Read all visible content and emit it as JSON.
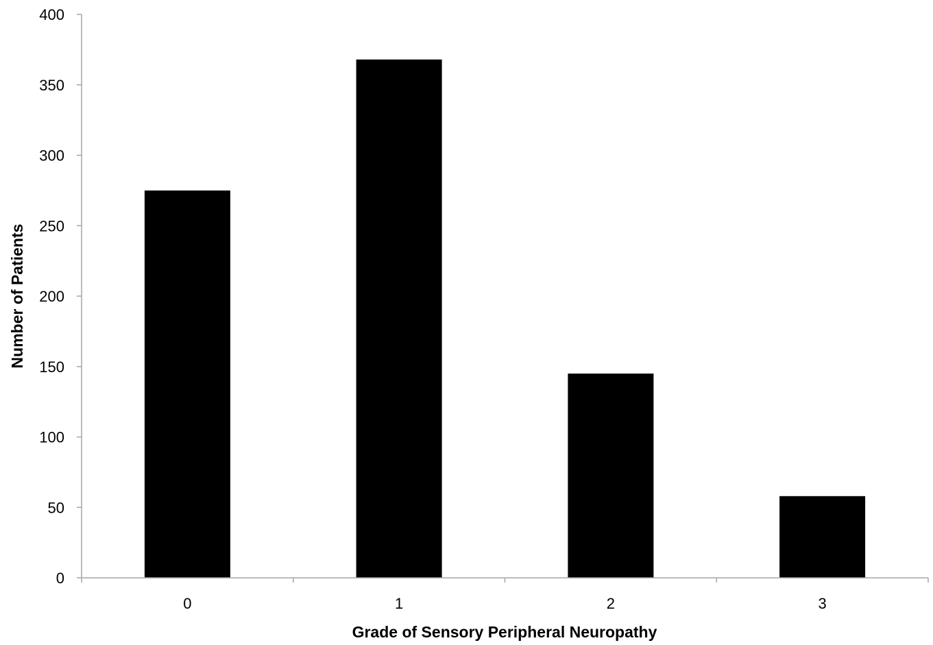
{
  "chart_data": {
    "type": "bar",
    "title": "",
    "xlabel": "Grade of Sensory Peripheral Neuropathy",
    "ylabel": "Number of Patients",
    "categories": [
      "0",
      "1",
      "2",
      "3"
    ],
    "values": [
      275,
      368,
      145,
      58
    ],
    "ylim": [
      0,
      400
    ],
    "yticks": [
      0,
      50,
      100,
      150,
      200,
      250,
      300,
      350,
      400
    ],
    "grid": false,
    "legend": "none",
    "bar_color": "#000000",
    "axis_color": "#a6a6a6"
  }
}
